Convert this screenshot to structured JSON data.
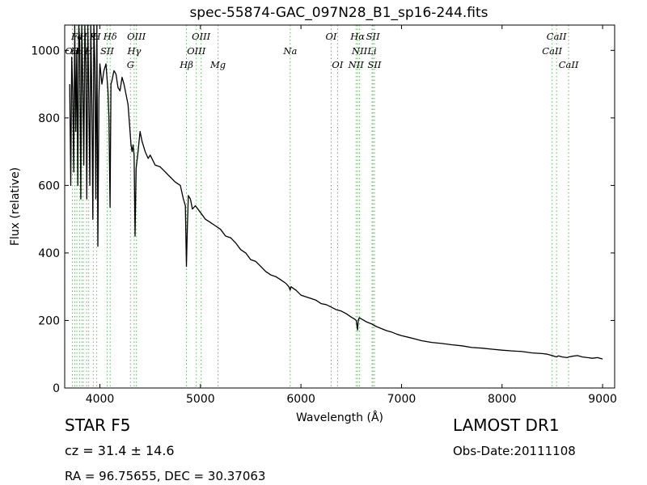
{
  "header": {
    "title": "spec-55874-GAC_097N28_B1_sp16-244.fits"
  },
  "info": {
    "object_class": "STAR   F5",
    "survey": "LAMOST DR1",
    "redshift": "cz = 31.4  ± 14.6",
    "obs_date": "Obs-Date:20111108",
    "coords": "RA = 96.75655, DEC = 30.37063"
  },
  "chart_data": {
    "type": "line",
    "xlabel": "Wavelength (Å)",
    "ylabel": "Flux (relative)",
    "xlim": [
      3650,
      9120
    ],
    "ylim": [
      0,
      1075
    ],
    "xticks": [
      4000,
      5000,
      6000,
      7000,
      8000,
      9000
    ],
    "yticks": [
      0,
      200,
      400,
      600,
      800,
      1000
    ],
    "grid": false,
    "line_color": "#000000",
    "marker_color": "#5cb85c",
    "series": [
      {
        "x": [
          3700,
          3710,
          3720,
          3730,
          3740,
          3750,
          3760,
          3770,
          3780,
          3790,
          3800,
          3810,
          3820,
          3830,
          3840,
          3850,
          3860,
          3870,
          3880,
          3890,
          3900,
          3910,
          3920,
          3930,
          3940,
          3950,
          3960,
          3970,
          3980,
          3990,
          4000,
          4020,
          4040,
          4060,
          4080,
          4090,
          4101,
          4110,
          4120,
          4140,
          4160,
          4180,
          4200,
          4220,
          4240,
          4260,
          4280,
          4300,
          4310,
          4320,
          4330,
          4340,
          4350,
          4360,
          4380,
          4400,
          4420,
          4450,
          4480,
          4500,
          4550,
          4600,
          4650,
          4700,
          4750,
          4800,
          4830,
          4850,
          4861,
          4870,
          4880,
          4900,
          4920,
          4950,
          5000,
          5050,
          5100,
          5150,
          5200,
          5250,
          5300,
          5350,
          5400,
          5450,
          5500,
          5550,
          5600,
          5650,
          5700,
          5750,
          5800,
          5850,
          5880,
          5893,
          5900,
          5950,
          6000,
          6050,
          6100,
          6150,
          6200,
          6250,
          6300,
          6350,
          6400,
          6450,
          6500,
          6530,
          6550,
          6563,
          6570,
          6580,
          6600,
          6650,
          6700,
          6750,
          6800,
          6850,
          6900,
          6950,
          7000,
          7100,
          7200,
          7300,
          7400,
          7500,
          7600,
          7700,
          7800,
          7900,
          8000,
          8100,
          8200,
          8300,
          8400,
          8450,
          8500,
          8542,
          8560,
          8600,
          8650,
          8662,
          8700,
          8750,
          8800,
          8850,
          8900,
          8950,
          9000
        ],
        "values": [
          900,
          600,
          980,
          880,
          640,
          1075,
          760,
          1000,
          600,
          1075,
          1020,
          560,
          1075,
          900,
          660,
          1075,
          960,
          560,
          1075,
          860,
          600,
          1075,
          840,
          500,
          1075,
          960,
          560,
          1075,
          420,
          860,
          960,
          900,
          940,
          960,
          880,
          800,
          535,
          900,
          910,
          940,
          930,
          890,
          880,
          920,
          900,
          870,
          840,
          760,
          720,
          700,
          720,
          690,
          450,
          650,
          700,
          760,
          730,
          700,
          680,
          690,
          660,
          655,
          640,
          625,
          610,
          600,
          560,
          540,
          360,
          480,
          570,
          560,
          530,
          540,
          520,
          500,
          490,
          480,
          470,
          450,
          445,
          430,
          410,
          400,
          380,
          375,
          360,
          345,
          335,
          330,
          320,
          310,
          300,
          290,
          300,
          290,
          275,
          270,
          265,
          260,
          250,
          247,
          240,
          232,
          228,
          220,
          210,
          205,
          200,
          172,
          200,
          208,
          205,
          196,
          190,
          182,
          176,
          170,
          166,
          160,
          155,
          148,
          140,
          135,
          132,
          128,
          125,
          120,
          118,
          115,
          112,
          110,
          108,
          104,
          102,
          100,
          96,
          92,
          95,
          92,
          90,
          92,
          94,
          96,
          92,
          90,
          88,
          90,
          86
        ]
      }
    ],
    "lines": [
      {
        "wave": 3727,
        "label": "OII",
        "tier": 2
      },
      {
        "wave": 3750,
        "label": "H",
        "tier": 2
      },
      {
        "wave": 3771,
        "label": "Fe",
        "tier": 1
      },
      {
        "wave": 3798,
        "label": "H",
        "tier": 2
      },
      {
        "wave": 3820,
        "label": "",
        "tier": 0
      },
      {
        "wave": 3835,
        "label": "H",
        "tier": 1
      },
      {
        "wave": 3868,
        "label": "",
        "tier": 0
      },
      {
        "wave": 3889,
        "label": "H",
        "tier": 2
      },
      {
        "wave": 3934,
        "label": "K",
        "tier": 1
      },
      {
        "wave": 3969,
        "label": "H",
        "tier": 1
      },
      {
        "wave": 4072,
        "label": "SII",
        "tier": 2
      },
      {
        "wave": 4102,
        "label": "Hδ",
        "tier": 1
      },
      {
        "wave": 4304,
        "label": "G",
        "tier": 3
      },
      {
        "wave": 4341,
        "label": "Hγ",
        "tier": 2
      },
      {
        "wave": 4363,
        "label": "OIII",
        "tier": 1
      },
      {
        "wave": 4861,
        "label": "Hβ",
        "tier": 3
      },
      {
        "wave": 4959,
        "label": "OIII",
        "tier": 2
      },
      {
        "wave": 5007,
        "label": "OIII",
        "tier": 1
      },
      {
        "wave": 5175,
        "label": "Mg",
        "tier": 3
      },
      {
        "wave": 5893,
        "label": "Na",
        "tier": 2
      },
      {
        "wave": 6300,
        "label": "OI",
        "tier": 1
      },
      {
        "wave": 6364,
        "label": "OI",
        "tier": 3
      },
      {
        "wave": 6548,
        "label": "NII",
        "tier": 3
      },
      {
        "wave": 6563,
        "label": "Hα",
        "tier": 1
      },
      {
        "wave": 6583,
        "label": "NII",
        "tier": 2
      },
      {
        "wave": 6707,
        "label": "Li",
        "tier": 2
      },
      {
        "wave": 6716,
        "label": "SII",
        "tier": 1
      },
      {
        "wave": 6731,
        "label": "SII",
        "tier": 3
      },
      {
        "wave": 8498,
        "label": "CaII",
        "tier": 2
      },
      {
        "wave": 8542,
        "label": "CaII",
        "tier": 1
      },
      {
        "wave": 8662,
        "label": "CaII",
        "tier": 3
      }
    ]
  }
}
